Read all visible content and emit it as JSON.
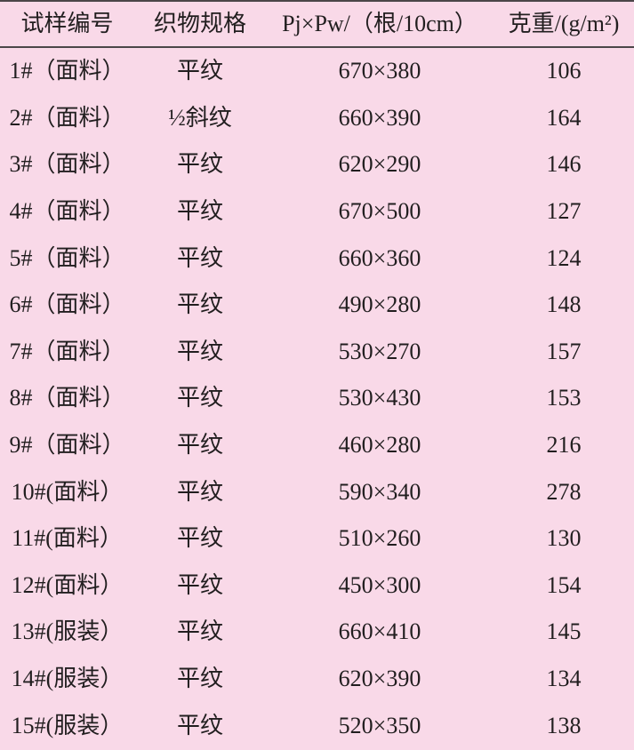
{
  "page": {
    "background": "#f9d9e8",
    "text_color": "#211e1f",
    "rule_color": "#4b4648"
  },
  "table": {
    "columns": [
      "试样编号",
      "织物规格",
      "Pj×Pw/（根/10cm）",
      "克重/(g/m²)"
    ],
    "rows": [
      [
        "1#（面料）",
        "平纹",
        "670×380",
        "106"
      ],
      [
        "2#（面料）",
        "½斜纹",
        "660×390",
        "164"
      ],
      [
        "3#（面料）",
        "平纹",
        "620×290",
        "146"
      ],
      [
        "4#（面料）",
        "平纹",
        "670×500",
        "127"
      ],
      [
        "5#（面料）",
        "平纹",
        "660×360",
        "124"
      ],
      [
        "6#（面料）",
        "平纹",
        "490×280",
        "148"
      ],
      [
        "7#（面料）",
        "平纹",
        "530×270",
        "157"
      ],
      [
        "8#（面料）",
        "平纹",
        "530×430",
        "153"
      ],
      [
        "9#（面料）",
        "平纹",
        "460×280",
        "216"
      ],
      [
        "10#(面料）",
        "平纹",
        "590×340",
        "278"
      ],
      [
        "11#(面料）",
        "平纹",
        "510×260",
        "130"
      ],
      [
        "12#(面料）",
        "平纹",
        "450×300",
        "154"
      ],
      [
        "13#(服装）",
        "平纹",
        "660×410",
        "145"
      ],
      [
        "14#(服装）",
        "平纹",
        "620×390",
        "134"
      ],
      [
        "15#(服装）",
        "平纹",
        "520×350",
        "138"
      ]
    ]
  }
}
